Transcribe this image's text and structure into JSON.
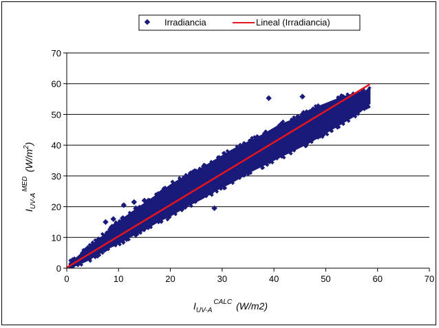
{
  "chart_data": {
    "type": "scatter",
    "title": "",
    "xlabel": {
      "base": "I",
      "sub": "UV-A",
      "sup": "CALC",
      "unit": "(W/m2)"
    },
    "ylabel": {
      "base": "I",
      "sub": "UV-A",
      "sup": "MED",
      "unit_prefix": "(W/m",
      "unit_sup": "2",
      "unit_suffix": ")"
    },
    "xlim": [
      0,
      70
    ],
    "ylim": [
      0,
      70
    ],
    "xticks": [
      "0",
      "10",
      "20",
      "30",
      "40",
      "50",
      "60",
      "70"
    ],
    "yticks": [
      "0",
      "10",
      "20",
      "30",
      "40",
      "50",
      "60",
      "70"
    ],
    "grid": "horizontal",
    "legend_position": "top-center",
    "series": [
      {
        "name": "Irradiancia",
        "kind": "scatter",
        "color": "#1a1a7a",
        "band": [
          {
            "x": 0.5,
            "lo": 0.2,
            "hi": 1.5
          },
          {
            "x": 2,
            "lo": 1.0,
            "hi": 3.5
          },
          {
            "x": 4,
            "lo": 2.5,
            "hi": 6.5
          },
          {
            "x": 6,
            "lo": 4.5,
            "hi": 9.0
          },
          {
            "x": 8,
            "lo": 6.5,
            "hi": 12.0
          },
          {
            "x": 10,
            "lo": 8.0,
            "hi": 15.0
          },
          {
            "x": 12,
            "lo": 10.0,
            "hi": 17.5
          },
          {
            "x": 15,
            "lo": 12.5,
            "hi": 21.0
          },
          {
            "x": 18,
            "lo": 15.5,
            "hi": 24.5
          },
          {
            "x": 20,
            "lo": 17.0,
            "hi": 27.0
          },
          {
            "x": 23,
            "lo": 20.0,
            "hi": 30.0
          },
          {
            "x": 26,
            "lo": 22.5,
            "hi": 32.5
          },
          {
            "x": 29,
            "lo": 25.5,
            "hi": 35.5
          },
          {
            "x": 32,
            "lo": 28.0,
            "hi": 38.5
          },
          {
            "x": 35,
            "lo": 31.0,
            "hi": 41.0
          },
          {
            "x": 38,
            "lo": 33.5,
            "hi": 43.5
          },
          {
            "x": 41,
            "lo": 36.0,
            "hi": 46.5
          },
          {
            "x": 44,
            "lo": 38.5,
            "hi": 48.5
          },
          {
            "x": 47,
            "lo": 41.0,
            "hi": 51.5
          },
          {
            "x": 50,
            "lo": 44.0,
            "hi": 53.5
          },
          {
            "x": 53,
            "lo": 47.0,
            "hi": 55.5
          },
          {
            "x": 56,
            "lo": 50.0,
            "hi": 57.0
          },
          {
            "x": 58.5,
            "lo": 53.5,
            "hi": 58.0
          }
        ],
        "outliers": [
          {
            "x": 39,
            "y": 55.3
          },
          {
            "x": 45.5,
            "y": 55.8
          },
          {
            "x": 28.5,
            "y": 19.5
          },
          {
            "x": 11,
            "y": 20.5
          },
          {
            "x": 13,
            "y": 21.5
          },
          {
            "x": 15,
            "y": 22.0
          },
          {
            "x": 7.5,
            "y": 15.0
          },
          {
            "x": 9,
            "y": 16.0
          }
        ]
      },
      {
        "name": "Lineal (Irradiancia)",
        "kind": "line",
        "color": "#e8141b",
        "x": [
          0,
          58.5
        ],
        "y": [
          0.2,
          59.8
        ]
      }
    ]
  }
}
